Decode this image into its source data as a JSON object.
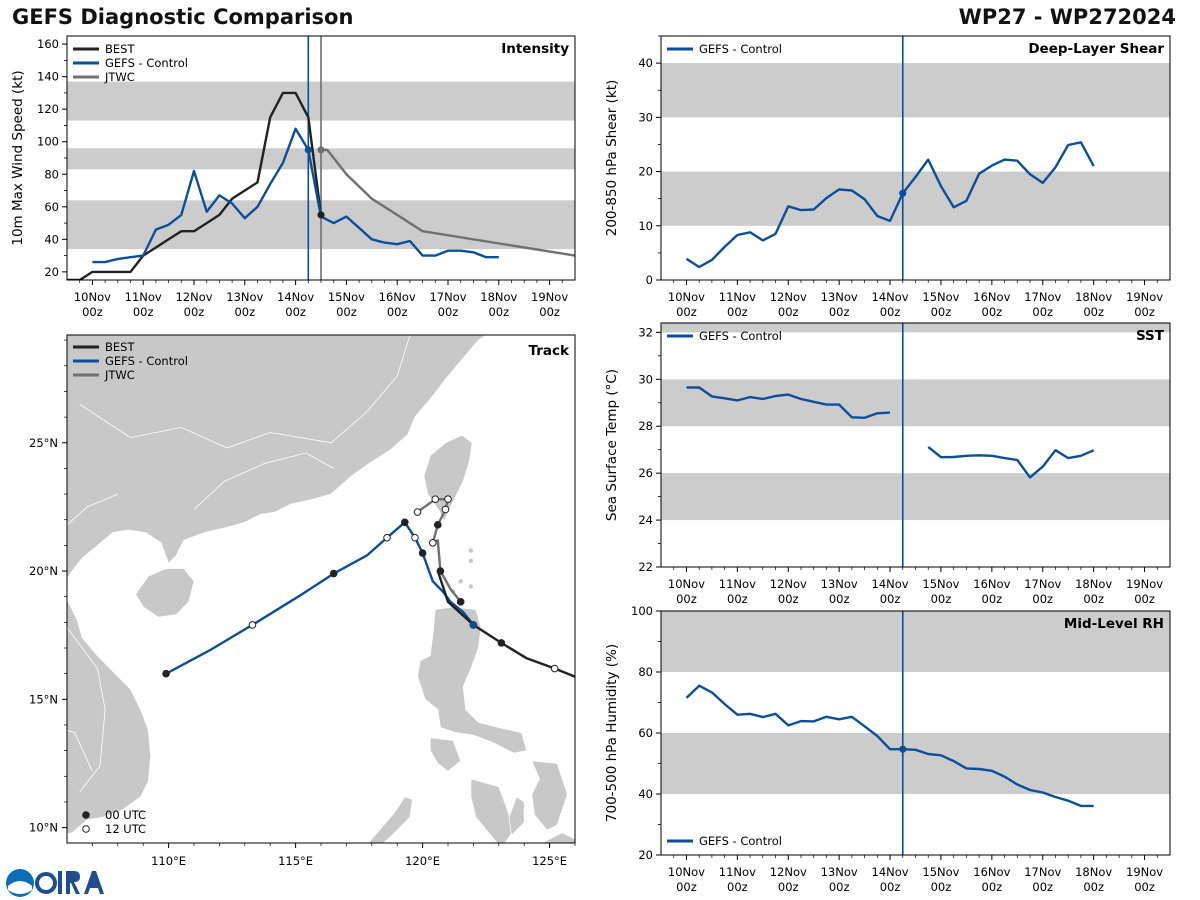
{
  "header": {
    "title": "GEFS Diagnostic Comparison",
    "storm_id": "WP27 - WP272024"
  },
  "colors": {
    "best": "#222222",
    "gefs": "#0b4f9c",
    "jtwc": "#707070",
    "band": "#cccccc",
    "land": "#c8c8c8"
  },
  "time_axis": {
    "tick_labels": [
      "10Nov\n00z",
      "11Nov\n00z",
      "12Nov\n00z",
      "13Nov\n00z",
      "14Nov\n00z",
      "15Nov\n00z",
      "16Nov\n00z",
      "17Nov\n00z",
      "18Nov\n00z",
      "19Nov\n00z"
    ]
  },
  "chart_data": [
    {
      "id": "intensity",
      "type": "line",
      "title": "Intensity",
      "ylabel": "10m Max Wind Speed (kt)",
      "xlim": [
        -0.5,
        9.5
      ],
      "ylim": [
        15,
        165
      ],
      "yticks": [
        20,
        40,
        60,
        80,
        100,
        120,
        140,
        160
      ],
      "bands": [
        [
          34,
          64
        ],
        [
          83,
          96
        ],
        [
          113,
          137
        ]
      ],
      "vlines": [
        {
          "x": 4.25,
          "series": "GEFS - Control"
        },
        {
          "x": 4.5,
          "series": "JTWC"
        }
      ],
      "legend": [
        "BEST",
        "GEFS - Control",
        "JTWC"
      ],
      "series": [
        {
          "name": "BEST",
          "x": [
            -0.5,
            -0.25,
            0,
            0.25,
            0.5,
            0.75,
            1,
            1.25,
            1.5,
            1.75,
            2,
            2.25,
            2.5,
            2.75,
            3,
            3.25,
            3.5,
            3.75,
            4,
            4.25,
            4.5
          ],
          "y": [
            15,
            15,
            20,
            20,
            20,
            20,
            30,
            35,
            40,
            45,
            45,
            50,
            55,
            65,
            70,
            75,
            115,
            130,
            130,
            115,
            55
          ]
        },
        {
          "name": "GEFS - Control",
          "x": [
            0,
            0.25,
            0.5,
            0.75,
            1,
            1.25,
            1.5,
            1.75,
            2,
            2.25,
            2.5,
            2.75,
            3,
            3.25,
            3.5,
            3.75,
            4,
            4.25,
            4.5,
            4.75,
            5,
            5.25,
            5.5,
            5.75,
            6,
            6.25,
            6.5,
            6.75,
            7,
            7.25,
            7.5,
            7.75,
            8
          ],
          "y": [
            26,
            26,
            28,
            29,
            30,
            46,
            49,
            55,
            82,
            57,
            67,
            62,
            53,
            60,
            74,
            87,
            108,
            95,
            54,
            50,
            54,
            47,
            40,
            38,
            37,
            39,
            30,
            30,
            33,
            33,
            32,
            29,
            29
          ]
        },
        {
          "name": "JTWC",
          "x": [
            4.5,
            4.625,
            5,
            5.5,
            6.5,
            9.5
          ],
          "y": [
            95,
            95,
            80,
            65,
            45,
            30
          ]
        }
      ],
      "markers": [
        {
          "series": "GEFS - Control",
          "x": 4.25,
          "y": 95
        },
        {
          "series": "JTWC",
          "x": 4.5,
          "y": 95
        },
        {
          "series": "BEST",
          "x": 4.5,
          "y": 55
        }
      ]
    },
    {
      "id": "shear",
      "type": "line",
      "title": "Deep-Layer Shear",
      "ylabel": "200-850 hPa Shear (kt)",
      "xlim": [
        -0.5,
        9.5
      ],
      "ylim": [
        0,
        45
      ],
      "yticks": [
        0,
        10,
        20,
        30,
        40
      ],
      "bands": [
        [
          10,
          20
        ],
        [
          30,
          40
        ]
      ],
      "vlines": [
        {
          "x": 4.25,
          "series": "GEFS - Control"
        }
      ],
      "legend": [
        "GEFS - Control"
      ],
      "series": [
        {
          "name": "GEFS - Control",
          "x": [
            0,
            0.25,
            0.5,
            0.75,
            1,
            1.25,
            1.5,
            1.75,
            2,
            2.25,
            2.5,
            2.75,
            3,
            3.25,
            3.5,
            3.75,
            4,
            4.25,
            4.5,
            4.75,
            5,
            5.25,
            5.5,
            5.75,
            6,
            6.25,
            6.5,
            6.75,
            7,
            7.25,
            7.5,
            7.75,
            8
          ],
          "y": [
            3.9,
            2.4,
            3.7,
            6.1,
            8.3,
            8.8,
            7.3,
            8.5,
            13.6,
            12.9,
            13.0,
            15.1,
            16.7,
            16.5,
            14.9,
            11.8,
            10.9,
            16.0,
            19.0,
            22.2,
            17.3,
            13.4,
            14.6,
            19.6,
            21.1,
            22.2,
            22.0,
            19.5,
            17.9,
            20.8,
            24.9,
            25.4,
            21.0
          ]
        }
      ],
      "markers": [
        {
          "series": "GEFS - Control",
          "x": 4.25,
          "y": 16.0
        }
      ]
    },
    {
      "id": "sst",
      "type": "line",
      "title": "SST",
      "ylabel": "Sea Surface Temp (°C)",
      "xlim": [
        -0.5,
        9.5
      ],
      "ylim": [
        22,
        32.4
      ],
      "yticks": [
        22,
        24,
        26,
        28,
        30,
        32
      ],
      "bands": [
        [
          24,
          26
        ],
        [
          28,
          30
        ],
        [
          32,
          32.4
        ]
      ],
      "vlines": [
        {
          "x": 4.25,
          "series": "GEFS - Control"
        }
      ],
      "legend": [
        "GEFS - Control"
      ],
      "series": [
        {
          "name": "GEFS - Control",
          "segments": [
            {
              "x": [
                0,
                0.25,
                0.5,
                0.75,
                1,
                1.25,
                1.5,
                1.75,
                2,
                2.25,
                2.5,
                2.75,
                3,
                3.25,
                3.5,
                3.75,
                4
              ],
              "y": [
                29.65,
                29.65,
                29.27,
                29.19,
                29.1,
                29.24,
                29.16,
                29.29,
                29.35,
                29.16,
                29.04,
                28.92,
                28.92,
                28.38,
                28.36,
                28.55,
                28.58
              ]
            },
            {
              "x": [
                4.75,
                5,
                5.25,
                5.5,
                5.75,
                6,
                6.25,
                6.5,
                6.75,
                7,
                7.25,
                7.5,
                7.75,
                8
              ],
              "y": [
                27.12,
                26.68,
                26.69,
                26.74,
                26.76,
                26.74,
                26.64,
                26.56,
                25.82,
                26.28,
                26.98,
                26.64,
                26.74,
                26.98
              ]
            }
          ]
        }
      ],
      "markers": []
    },
    {
      "id": "rh",
      "type": "line",
      "title": "Mid-Level RH",
      "ylabel": "700-500 hPa Humidity (%)",
      "xlim": [
        -0.5,
        9.5
      ],
      "ylim": [
        20,
        100
      ],
      "yticks": [
        20,
        40,
        60,
        80,
        100
      ],
      "bands": [
        [
          40,
          60
        ],
        [
          80,
          100
        ]
      ],
      "vlines": [
        {
          "x": 4.25,
          "series": "GEFS - Control"
        }
      ],
      "legend": [
        "GEFS - Control"
      ],
      "series": [
        {
          "name": "GEFS - Control",
          "x": [
            0,
            0.25,
            0.5,
            0.75,
            1,
            1.25,
            1.5,
            1.75,
            2,
            2.25,
            2.5,
            2.75,
            3,
            3.25,
            3.5,
            3.75,
            4,
            4.25,
            4.5,
            4.75,
            5,
            5.25,
            5.5,
            5.75,
            6,
            6.25,
            6.5,
            6.75,
            7,
            7.25,
            7.5,
            7.75,
            8
          ],
          "y": [
            71.5,
            75.5,
            73.3,
            69.5,
            66.0,
            66.3,
            65.2,
            66.3,
            62.5,
            63.9,
            63.8,
            65.3,
            64.5,
            65.3,
            62.2,
            59.0,
            54.7,
            54.7,
            54.5,
            53.1,
            52.7,
            50.8,
            48.4,
            48.2,
            47.6,
            45.7,
            43.1,
            41.3,
            40.5,
            39.0,
            37.8,
            36.1,
            36.1
          ]
        }
      ],
      "markers": [
        {
          "series": "GEFS - Control",
          "x": 4.25,
          "y": 54.7
        }
      ]
    },
    {
      "id": "track",
      "type": "scatter",
      "title": "Track",
      "xlim": [
        106,
        126
      ],
      "ylim": [
        9.4,
        29.2
      ],
      "xticks": [
        {
          "v": 110,
          "label": "110°E"
        },
        {
          "v": 115,
          "label": "115°E"
        },
        {
          "v": 120,
          "label": "120°E"
        },
        {
          "v": 125,
          "label": "125°E"
        }
      ],
      "yticks": [
        {
          "v": 10,
          "label": "10°N"
        },
        {
          "v": 15,
          "label": "15°N"
        },
        {
          "v": 20,
          "label": "20°N"
        },
        {
          "v": 25,
          "label": "25°N"
        }
      ],
      "legend": [
        "BEST",
        "GEFS - Control",
        "JTWC"
      ],
      "marker_legend": [
        "00 UTC",
        "12 UTC"
      ],
      "series": [
        {
          "name": "BEST",
          "lon": [
            126.2,
            125.2,
            124.1,
            123.1,
            122.0,
            121.0,
            120.6
          ],
          "lat": [
            15.8,
            16.2,
            16.6,
            17.2,
            17.9,
            18.8,
            20.0
          ],
          "marker_type": [
            "none",
            "12",
            "none",
            "00",
            "12",
            "none",
            "none"
          ]
        },
        {
          "name": "GEFS - Control",
          "lon": [
            122.0,
            121.6,
            121.1,
            120.8,
            120.4,
            120.0,
            119.7,
            119.3,
            118.6,
            117.8,
            116.5,
            115.1,
            113.3,
            111.6,
            109.9
          ],
          "lat": [
            17.9,
            18.4,
            18.8,
            19.2,
            19.6,
            20.7,
            21.3,
            21.9,
            21.3,
            20.6,
            19.9,
            19.0,
            17.9,
            16.9,
            16.0
          ],
          "marker_type": [
            "00",
            "none",
            "none",
            "none",
            "none",
            "00",
            "12",
            "00",
            "12",
            "none",
            "00",
            "none",
            "12",
            "none",
            "00"
          ]
        },
        {
          "name": "JTWC",
          "lon": [
            121.5,
            121.1,
            120.7,
            120.6,
            120.4,
            120.6,
            120.9,
            121.0,
            120.5,
            119.8
          ],
          "lat": [
            18.8,
            19.3,
            20.0,
            21.2,
            21.1,
            21.8,
            22.4,
            22.8,
            22.8,
            22.3
          ],
          "marker_type": [
            "00",
            "none",
            "00",
            "none",
            "12",
            "00",
            "12",
            "12",
            "12",
            "12"
          ]
        }
      ]
    }
  ]
}
